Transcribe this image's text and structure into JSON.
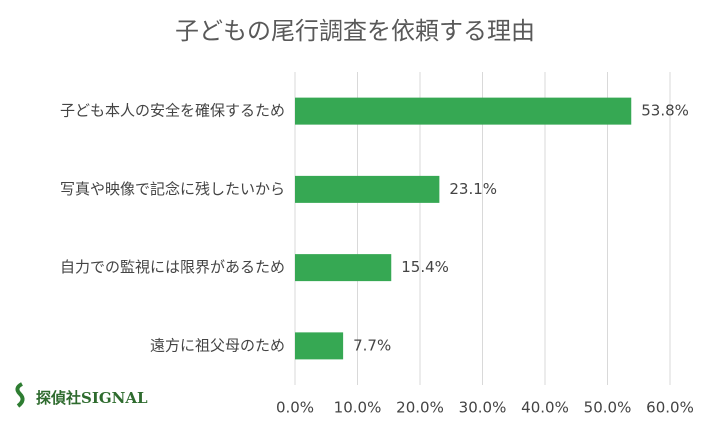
{
  "chart_data": {
    "type": "barh",
    "title": "子どもの尾行調査を依頼する理由",
    "categories": [
      "子ども本人の安全を確保するため",
      "写真や映像で記念に残したいから",
      "自力での監視には限界があるため",
      "遠方に祖父母のため"
    ],
    "values": [
      53.8,
      23.1,
      15.4,
      7.7
    ],
    "value_labels": [
      "53.8%",
      "23.1%",
      "15.4%",
      "7.7%"
    ],
    "color": "#36a853",
    "xlim": [
      0,
      60
    ],
    "xticks": [
      {
        "value": 0,
        "label": "0.0%"
      },
      {
        "value": 10,
        "label": "10.0%"
      },
      {
        "value": 20,
        "label": "20.0%"
      },
      {
        "value": 30,
        "label": "30.0%"
      },
      {
        "value": 40,
        "label": "40.0%"
      },
      {
        "value": 50,
        "label": "50.0%"
      },
      {
        "value": 60,
        "label": "60.0%"
      }
    ],
    "grid": true,
    "logo": "探偵社SIGNAL"
  }
}
